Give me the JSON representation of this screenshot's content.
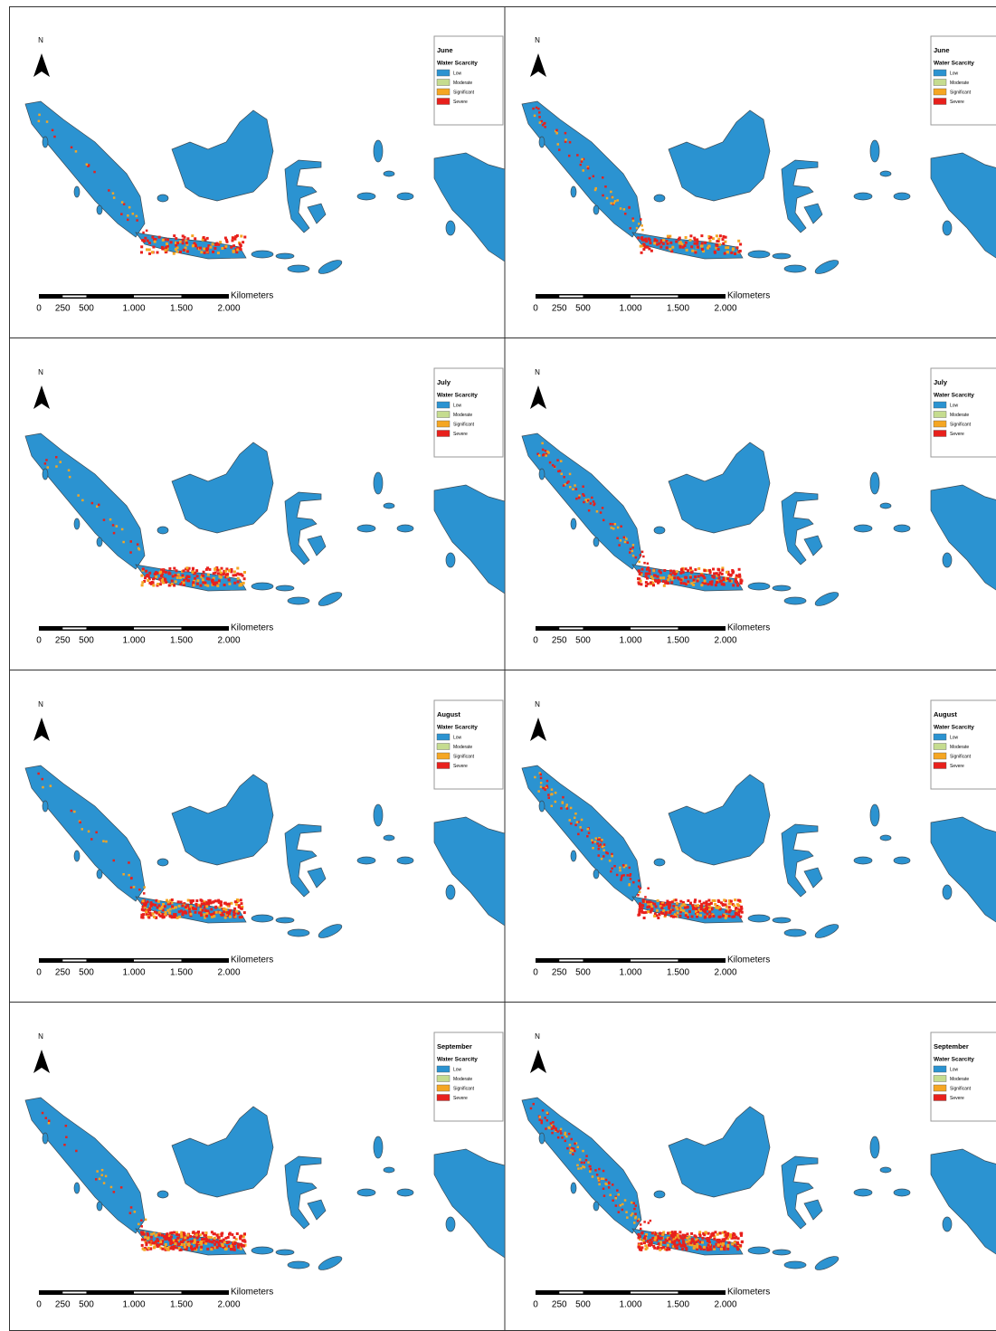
{
  "rows": [
    {
      "month": "June"
    },
    {
      "month": "July"
    },
    {
      "month": "August"
    },
    {
      "month": "September"
    }
  ],
  "north": "N",
  "legend": {
    "title": "Water Scarcity",
    "items": [
      {
        "label": "Low",
        "color": "#2b93d1"
      },
      {
        "label": "Moderate",
        "color": "#c5dc8f"
      },
      {
        "label": "Significant",
        "color": "#f5a623"
      },
      {
        "label": "Severe",
        "color": "#e8201c"
      }
    ]
  },
  "scale": {
    "unit": "Kilometers",
    "ticks": [
      {
        "value": 0,
        "label": "0"
      },
      {
        "value": 250,
        "label": "250"
      },
      {
        "value": 500,
        "label": "500"
      },
      {
        "value": 1000,
        "label": "1.000"
      },
      {
        "value": 1500,
        "label": "1.500"
      },
      {
        "value": 2000,
        "label": "2.000"
      }
    ]
  }
}
